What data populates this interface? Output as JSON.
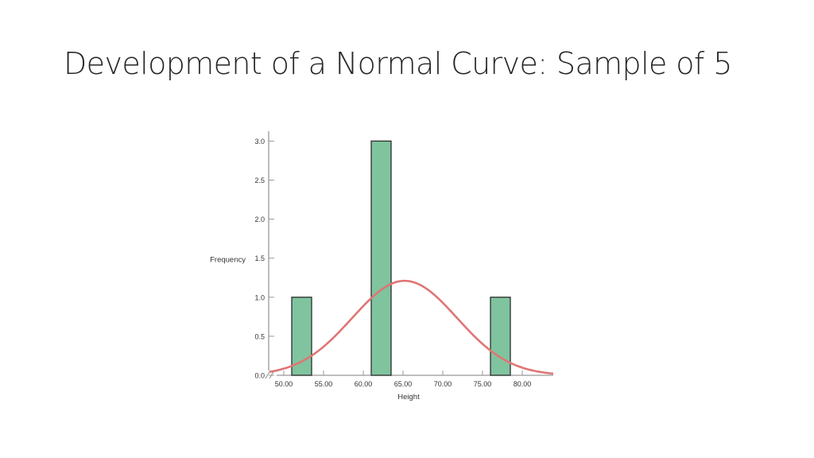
{
  "slide": {
    "title": "Development of a Normal Curve: Sample of 5"
  },
  "chart_data": {
    "type": "bar",
    "title": "",
    "xlabel": "Height",
    "ylabel": "Frequency",
    "x_ticks": [
      "50.00",
      "55.00",
      "60.00",
      "65.00",
      "70.00",
      "75.00",
      "80.00"
    ],
    "y_ticks": [
      "0.0",
      "0.5",
      "1.0",
      "1.5",
      "2.0",
      "2.5",
      "3.0"
    ],
    "xlim": [
      48.0,
      84.0
    ],
    "ylim": [
      0,
      3.15
    ],
    "bars": [
      {
        "from": 51.0,
        "to": 53.5,
        "value": 1
      },
      {
        "from": 61.0,
        "to": 63.5,
        "value": 3
      },
      {
        "from": 76.0,
        "to": 78.5,
        "value": 1
      }
    ],
    "normal_curve": {
      "mean": 65.2,
      "peak": 1.21,
      "sd": 6.6
    },
    "axis_break": true,
    "colors": {
      "bar_fill": "#7fc49e",
      "bar_stroke": "#2c2c2c",
      "curve": "#e07575",
      "axis": "#999999"
    }
  }
}
